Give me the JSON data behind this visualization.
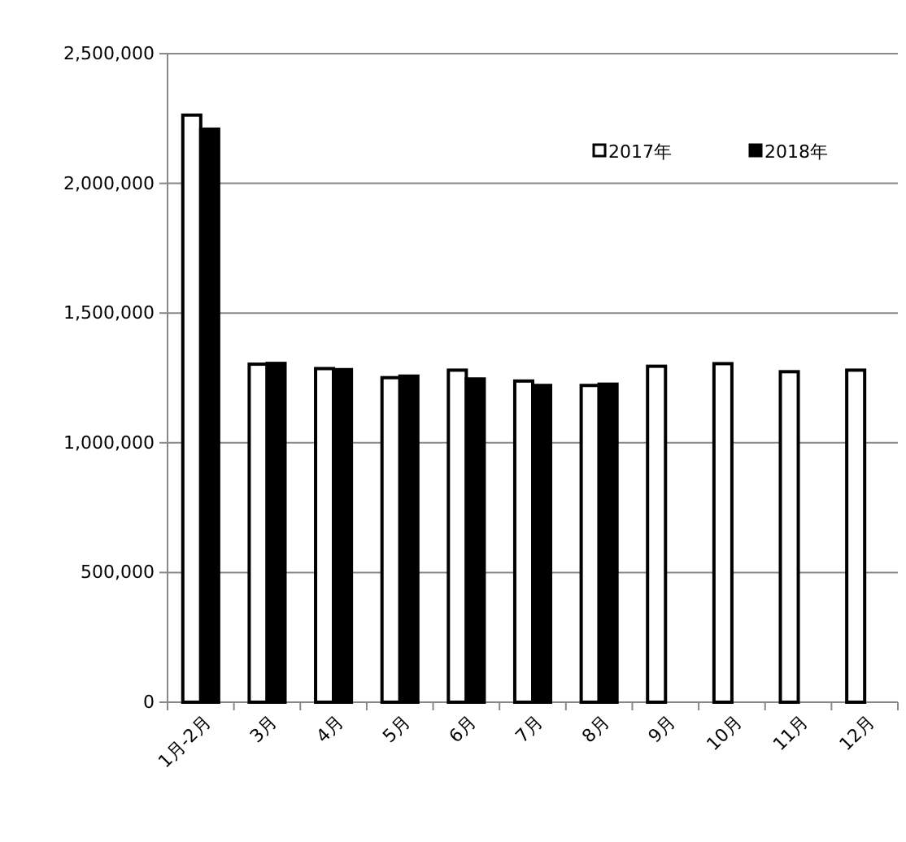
{
  "chart_data": {
    "type": "bar",
    "categories": [
      "1月-2月",
      "3月",
      "4月",
      "5月",
      "6月",
      "7月",
      "8月",
      "9月",
      "10月",
      "11月",
      "12月"
    ],
    "series": [
      {
        "name": "2017年",
        "color": "#ffffff",
        "values": [
          2263000,
          1303000,
          1286000,
          1251000,
          1280000,
          1238000,
          1221000,
          1295000,
          1305000,
          1274000,
          1280000
        ]
      },
      {
        "name": "2018年",
        "color": "#000000",
        "values": [
          2209000,
          1306000,
          1282000,
          1257000,
          1246000,
          1221000,
          1226000,
          null,
          null,
          null,
          null
        ]
      }
    ],
    "ylim": [
      0,
      2500000
    ],
    "yticks": [
      {
        "value": 0,
        "label": "0"
      },
      {
        "value": 500000,
        "label": "500,000"
      },
      {
        "value": 1000000,
        "label": "1,000,000"
      },
      {
        "value": 1500000,
        "label": "1,500,000"
      },
      {
        "value": 2000000,
        "label": "2,000,000"
      },
      {
        "value": 2500000,
        "label": "2,500,000"
      }
    ],
    "grid": "y",
    "legend": "top right"
  }
}
